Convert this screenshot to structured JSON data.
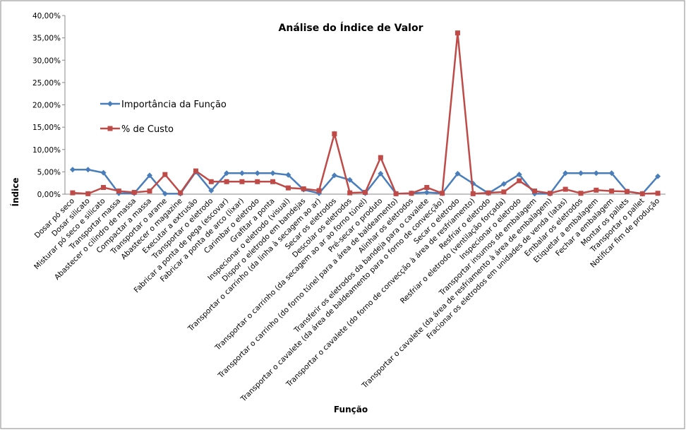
{
  "chart_data": {
    "type": "line",
    "title": "Análise do Índice de Valor",
    "x_label": "Função",
    "y_label": "Índice",
    "categories": [
      "Dosar pó seco",
      "Dosar silicato",
      "Misturar pó seco e silicato",
      "Transportar massa",
      "Abastecer o cilindro de massa",
      "Compactar a massa",
      "Transportar o arame",
      "Abastecer o magazine",
      "Executar a extrusão",
      "Transportar o eletrodo",
      "Fabricar a ponta de pega (escovar)",
      "Fabricar a ponta de arco (lixar)",
      "Carimbar o eletrodo",
      "Grafitar a ponta",
      "Inspecionar o eletrodo (visual)",
      "Dispor o eletrodo em bandejas",
      "Transportar o carrinho (da linha à secagem ao ar)",
      "Secar os eletrodos",
      "Descolar os eletrodos",
      "Transportar o carrinho (da secagem ao ar ao forno túnel)",
      "Pré-secar o produto",
      "Transportar o carrinho (do forno túnel para a área de baldeamento)",
      "Alinhar os eletrodos",
      "Transferir os eletrodos da bandeja para o cavalete",
      "Transportar o cavalete (da área de baldeamento para o forno de convecção)",
      "Secar o eletrodo",
      "Transportar o cavalete (do forno de convecção à área de resfriamento)",
      "Resfriar o eletrodo",
      "Resfriar o eletrodo (ventilação forçada)",
      "Inspecionar o eletrodo",
      "Transportar insumos de embalagem",
      "Transportar o cavalete (da área de resfriamento à área de embalagem)",
      "Fracionar os eletrodos em unidades de venda (latas)",
      "Embalar os eletrodos",
      "Etiquetar a embalagem",
      "Fechar a embalagem",
      "Montar os pallets",
      "Transportar o pallet",
      "Notificar fim de produção"
    ],
    "series": [
      {
        "name": "Importância da Função",
        "color": "#4a7ebb",
        "marker": "diamond",
        "values": [
          5.5,
          5.5,
          4.8,
          0.2,
          0.2,
          4.2,
          0.1,
          0.1,
          5.0,
          0.8,
          4.7,
          4.7,
          4.7,
          4.7,
          4.3,
          1.0,
          0.2,
          4.2,
          3.2,
          0.2,
          4.6,
          0.1,
          0.2,
          0.4,
          0.2,
          4.6,
          2.4,
          0.2,
          2.3,
          4.4,
          0.1,
          0.1,
          4.7,
          4.7,
          4.7,
          4.7,
          0.6,
          0.1,
          4.0
        ]
      },
      {
        "name": "% de Custo",
        "color": "#be4b48",
        "marker": "square",
        "values": [
          0.3,
          0.1,
          1.5,
          0.7,
          0.4,
          0.7,
          4.4,
          0.3,
          5.2,
          2.8,
          2.8,
          2.8,
          2.8,
          2.8,
          1.4,
          1.2,
          0.8,
          13.5,
          0.3,
          0.4,
          8.2,
          0.1,
          0.2,
          1.5,
          0.2,
          36.1,
          0.1,
          0.3,
          0.5,
          3.0,
          0.7,
          0.2,
          1.1,
          0.2,
          0.9,
          0.7,
          0.6,
          0.1,
          0.2
        ]
      }
    ],
    "ylim": [
      0,
      40
    ],
    "yticks": [
      {
        "value": 0,
        "label": "0,00%"
      },
      {
        "value": 5,
        "label": "5,00%"
      },
      {
        "value": 10,
        "label": "10,00%"
      },
      {
        "value": 15,
        "label": "15,00%"
      },
      {
        "value": 20,
        "label": "20,00%"
      },
      {
        "value": 25,
        "label": "25,00%"
      },
      {
        "value": 30,
        "label": "30,00%"
      },
      {
        "value": 35,
        "label": "35,00%"
      },
      {
        "value": 40,
        "label": "40,00%"
      }
    ],
    "grid": false
  }
}
